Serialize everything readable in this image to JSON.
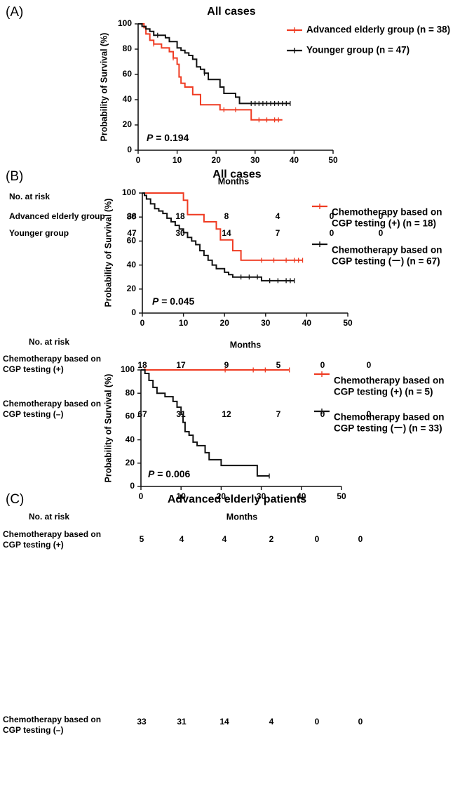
{
  "colors": {
    "red": "#ef3b22",
    "black": "#111111"
  },
  "chart_data": [
    {
      "type": "line",
      "panel": "(A)",
      "title": "All cases",
      "xlabel": "Months",
      "ylabel": "Probability of Survival (%)",
      "xlim": [
        0,
        50
      ],
      "ylim": [
        0,
        100
      ],
      "xticks": [
        "0",
        "10",
        "20",
        "30",
        "40",
        "50"
      ],
      "yticks": [
        "0",
        "20",
        "40",
        "60",
        "80",
        "100"
      ],
      "pvalue": {
        "prefix": "P",
        "text": " = 0.194"
      },
      "series": [
        {
          "name": "Advanced elderly group (n = 38)",
          "color": "red",
          "steps": [
            [
              0,
              100
            ],
            [
              1.5,
              97
            ],
            [
              2,
              92
            ],
            [
              3,
              87
            ],
            [
              4,
              84
            ],
            [
              6,
              81
            ],
            [
              8,
              78
            ],
            [
              9,
              73
            ],
            [
              10,
              68
            ],
            [
              10.5,
              58
            ],
            [
              11,
              53
            ],
            [
              12,
              50
            ],
            [
              14,
              44
            ],
            [
              16,
              36
            ],
            [
              21,
              32
            ],
            [
              29,
              24
            ],
            [
              37,
              24
            ]
          ],
          "censors": [
            [
              4,
              84
            ],
            [
              9,
              73
            ],
            [
              22,
              32
            ],
            [
              25,
              32
            ],
            [
              31,
              24
            ],
            [
              33,
              24
            ],
            [
              35,
              24
            ],
            [
              36,
              24
            ]
          ]
        },
        {
          "name": "Younger group (n = 47)",
          "color": "black",
          "steps": [
            [
              0,
              100
            ],
            [
              1,
              98
            ],
            [
              2,
              96
            ],
            [
              3,
              94
            ],
            [
              4,
              91
            ],
            [
              7,
              89
            ],
            [
              8,
              86
            ],
            [
              10,
              81
            ],
            [
              11,
              79
            ],
            [
              12,
              77
            ],
            [
              13,
              75
            ],
            [
              14,
              72
            ],
            [
              15,
              66
            ],
            [
              16,
              64
            ],
            [
              17,
              61
            ],
            [
              18,
              56
            ],
            [
              21,
              50
            ],
            [
              22,
              45
            ],
            [
              25,
              42
            ],
            [
              26,
              37
            ],
            [
              39,
              37
            ]
          ],
          "censors": [
            [
              5,
              91
            ],
            [
              17,
              61
            ],
            [
              29,
              37
            ],
            [
              30,
              37
            ],
            [
              31,
              37
            ],
            [
              32,
              37
            ],
            [
              33,
              37
            ],
            [
              34,
              37
            ],
            [
              35,
              37
            ],
            [
              36,
              37
            ],
            [
              37,
              37
            ],
            [
              38,
              37
            ],
            [
              39,
              37
            ]
          ]
        }
      ],
      "risk_table": {
        "heading": "No. at risk",
        "rows": [
          {
            "label": [
              "Advanced elderly group"
            ],
            "values": [
              "38",
              "18",
              "8",
              "4",
              "0",
              "0"
            ]
          },
          {
            "label": [
              "Younger group"
            ],
            "values": [
              "47",
              "30",
              "14",
              "7",
              "0",
              "0"
            ]
          }
        ]
      }
    },
    {
      "type": "line",
      "panel": "(B)",
      "title": "All cases",
      "xlabel": "Months",
      "ylabel": "Probability of Survival (%)",
      "xlim": [
        0,
        50
      ],
      "ylim": [
        0,
        100
      ],
      "xticks": [
        "0",
        "10",
        "20",
        "30",
        "40",
        "50"
      ],
      "yticks": [
        "0",
        "20",
        "40",
        "60",
        "80",
        "100"
      ],
      "pvalue": {
        "prefix": "P",
        "text": " = 0.045"
      },
      "series": [
        {
          "name": "Chemotherapy based on CGP testing (+) (n = 18)",
          "legend_lines": [
            "Chemotherapy based on",
            "CGP testing (+) (n = 18)"
          ],
          "color": "red",
          "steps": [
            [
              0,
              100
            ],
            [
              10,
              94
            ],
            [
              11,
              82
            ],
            [
              15,
              76
            ],
            [
              18,
              70
            ],
            [
              19,
              61
            ],
            [
              22,
              52
            ],
            [
              24,
              44
            ],
            [
              39,
              44
            ]
          ],
          "censors": [
            [
              29,
              44
            ],
            [
              32,
              44
            ],
            [
              35,
              44
            ],
            [
              37,
              44
            ],
            [
              38,
              44
            ],
            [
              39,
              44
            ]
          ]
        },
        {
          "name": "Chemotherapy based on CGP testing (ー) (n = 67)",
          "legend_lines": [
            "Chemotherapy based on",
            "CGP testing (ー) (n = 67)"
          ],
          "color": "black",
          "steps": [
            [
              0,
              100
            ],
            [
              0.5,
              98
            ],
            [
              1,
              95
            ],
            [
              2,
              91
            ],
            [
              3,
              87
            ],
            [
              4,
              85
            ],
            [
              5,
              83
            ],
            [
              6,
              79
            ],
            [
              7,
              76
            ],
            [
              8,
              73
            ],
            [
              9,
              70
            ],
            [
              10,
              67
            ],
            [
              11,
              63
            ],
            [
              12,
              60
            ],
            [
              13,
              57
            ],
            [
              14,
              52
            ],
            [
              15,
              48
            ],
            [
              16,
              44
            ],
            [
              17,
              40
            ],
            [
              18,
              37
            ],
            [
              20,
              34
            ],
            [
              21,
              32
            ],
            [
              22,
              30
            ],
            [
              29,
              27
            ],
            [
              37,
              27
            ]
          ],
          "censors": [
            [
              24,
              30
            ],
            [
              26,
              30
            ],
            [
              28,
              30
            ],
            [
              31,
              27
            ],
            [
              33,
              27
            ],
            [
              35,
              27
            ],
            [
              36,
              27
            ],
            [
              37,
              27
            ]
          ]
        }
      ],
      "risk_table": {
        "heading": "No. at risk",
        "rows": [
          {
            "label": [
              "Chemotherapy based on",
              "CGP testing (+)"
            ],
            "values": [
              "18",
              "17",
              "9",
              "5",
              "0",
              "0"
            ]
          },
          {
            "label": [
              "Chemotherapy based on",
              "CGP testing (–)"
            ],
            "values": [
              "67",
              "31",
              "12",
              "7",
              "0",
              "0"
            ]
          }
        ]
      }
    },
    {
      "type": "line",
      "panel": "(C)",
      "title": "Advanced elderly patients",
      "xlabel": "Months",
      "ylabel": "Probability of Survival (%)",
      "xlim": [
        0,
        50
      ],
      "ylim": [
        0,
        100
      ],
      "xticks": [
        "0",
        "10",
        "20",
        "30",
        "40",
        "50"
      ],
      "yticks": [
        "0",
        "20",
        "40",
        "60",
        "80",
        "100"
      ],
      "pvalue": {
        "prefix": "P",
        "text": " = 0.006"
      },
      "series": [
        {
          "name": "Chemotherapy based on CGP testing (+) (n = 5)",
          "legend_lines": [
            "Chemotherapy based on",
            "CGP testing (+) (n = 5)"
          ],
          "color": "red",
          "steps": [
            [
              0,
              100
            ],
            [
              37,
              100
            ]
          ],
          "censors": [
            [
              1,
              100
            ],
            [
              21,
              100
            ],
            [
              28,
              100
            ],
            [
              31,
              100
            ],
            [
              37,
              100
            ]
          ]
        },
        {
          "name": "Chemotherapy based on CGP testing (ー) (n = 33)",
          "legend_lines": [
            "Chemotherapy based on",
            "CGP testing (ー) (n = 33)"
          ],
          "color": "black",
          "steps": [
            [
              0,
              100
            ],
            [
              1,
              97
            ],
            [
              2,
              91
            ],
            [
              3,
              85
            ],
            [
              4,
              80
            ],
            [
              6,
              77
            ],
            [
              8,
              73
            ],
            [
              9,
              68
            ],
            [
              10,
              62
            ],
            [
              10.5,
              55
            ],
            [
              11,
              47
            ],
            [
              12,
              44
            ],
            [
              13,
              38
            ],
            [
              14,
              35
            ],
            [
              16,
              29
            ],
            [
              17,
              23
            ],
            [
              20,
              18
            ],
            [
              29,
              9
            ],
            [
              32,
              9
            ]
          ],
          "censors": [
            [
              32,
              9
            ]
          ]
        }
      ],
      "risk_table": {
        "heading": "No. at risk",
        "rows": [
          {
            "label": [
              "Chemotherapy based on",
              "CGP testing (+)"
            ],
            "values": [
              "5",
              "4",
              "4",
              "2",
              "0",
              "0"
            ]
          },
          {
            "label": [
              "Chemotherapy based on",
              "CGP testing (–)"
            ],
            "values": [
              "33",
              "31",
              "14",
              "4",
              "0",
              "0"
            ]
          }
        ]
      }
    }
  ]
}
